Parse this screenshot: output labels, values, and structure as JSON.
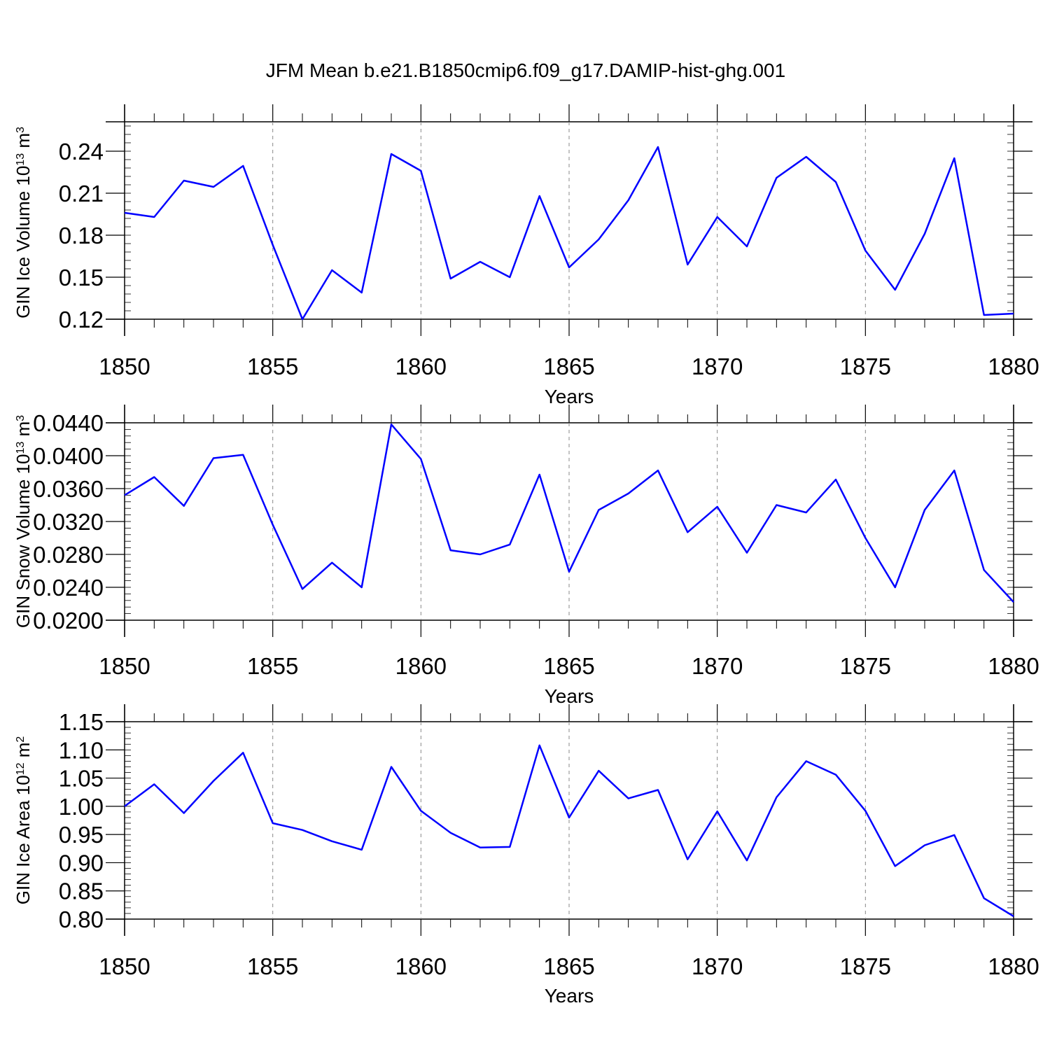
{
  "title": "JFM Mean b.e21.B1850cmip6.f09_g17.DAMIP-hist-ghg.001",
  "line_color": "#0000ff",
  "chart_data": [
    {
      "type": "line",
      "ylabel": "GIN Ice Volume 10",
      "ylabel_exp": "13",
      "ylabel_unit": "m",
      "ylabel_unit_exp": "3",
      "xlabel": "Years",
      "xlim": [
        1850,
        1880
      ],
      "ylim": [
        0.12,
        0.261
      ],
      "yticks": [
        0.12,
        0.15,
        0.18,
        0.21,
        0.24
      ],
      "ytick_labels": [
        "0.12",
        "0.15",
        "0.18",
        "0.21",
        "0.24"
      ],
      "xticks": [
        1850,
        1855,
        1860,
        1865,
        1870,
        1875,
        1880
      ],
      "xtick_labels": [
        "1850",
        "1855",
        "1860",
        "1865",
        "1870",
        "1875",
        "1880"
      ],
      "x": [
        1850,
        1851,
        1852,
        1853,
        1854,
        1855,
        1856,
        1857,
        1858,
        1859,
        1860,
        1861,
        1862,
        1863,
        1864,
        1865,
        1866,
        1867,
        1868,
        1869,
        1870,
        1871,
        1872,
        1873,
        1874,
        1875,
        1876,
        1877,
        1878,
        1879,
        1880
      ],
      "values": [
        0.196,
        0.193,
        0.219,
        0.2145,
        0.2295,
        0.173,
        0.12,
        0.155,
        0.139,
        0.238,
        0.226,
        0.149,
        0.161,
        0.15,
        0.208,
        0.157,
        0.177,
        0.205,
        0.243,
        0.159,
        0.193,
        0.172,
        0.221,
        0.236,
        0.218,
        0.169,
        0.141,
        0.181,
        0.235,
        0.123,
        0.124
      ]
    },
    {
      "type": "line",
      "ylabel": "GIN Snow Volume 10",
      "ylabel_exp": "13",
      "ylabel_unit": "m",
      "ylabel_unit_exp": "3",
      "xlabel": "Years",
      "xlim": [
        1850,
        1880
      ],
      "ylim": [
        0.02,
        0.044
      ],
      "yticks": [
        0.02,
        0.024,
        0.028,
        0.032,
        0.036,
        0.04,
        0.044
      ],
      "ytick_labels": [
        "0.0200",
        "0.0240",
        "0.0280",
        "0.0320",
        "0.0360",
        "0.0400",
        "0.0440"
      ],
      "xticks": [
        1850,
        1855,
        1860,
        1865,
        1870,
        1875,
        1880
      ],
      "xtick_labels": [
        "1850",
        "1855",
        "1860",
        "1865",
        "1870",
        "1875",
        "1880"
      ],
      "x": [
        1850,
        1851,
        1852,
        1853,
        1854,
        1855,
        1856,
        1857,
        1858,
        1859,
        1860,
        1861,
        1862,
        1863,
        1864,
        1865,
        1866,
        1867,
        1868,
        1869,
        1870,
        1871,
        1872,
        1873,
        1874,
        1875,
        1876,
        1877,
        1878,
        1879,
        1880
      ],
      "values": [
        0.0352,
        0.0374,
        0.0339,
        0.0397,
        0.0401,
        0.0316,
        0.0238,
        0.027,
        0.024,
        0.0438,
        0.0396,
        0.0285,
        0.028,
        0.0292,
        0.0377,
        0.0259,
        0.0334,
        0.0354,
        0.0382,
        0.0307,
        0.0338,
        0.0282,
        0.034,
        0.0331,
        0.0371,
        0.03,
        0.024,
        0.0334,
        0.0382,
        0.0261,
        0.0222
      ]
    },
    {
      "type": "line",
      "ylabel": "GIN Ice Area 10",
      "ylabel_exp": "12",
      "ylabel_unit": "m",
      "ylabel_unit_exp": "2",
      "xlabel": "Years",
      "xlim": [
        1850,
        1880
      ],
      "ylim": [
        0.8,
        1.15
      ],
      "yticks": [
        0.8,
        0.85,
        0.9,
        0.95,
        1.0,
        1.05,
        1.1,
        1.15
      ],
      "ytick_labels": [
        "0.80",
        "0.85",
        "0.90",
        "0.95",
        "1.00",
        "1.05",
        "1.10",
        "1.15"
      ],
      "xticks": [
        1850,
        1855,
        1860,
        1865,
        1870,
        1875,
        1880
      ],
      "xtick_labels": [
        "1850",
        "1855",
        "1860",
        "1865",
        "1870",
        "1875",
        "1880"
      ],
      "x": [
        1850,
        1851,
        1852,
        1853,
        1854,
        1855,
        1856,
        1857,
        1858,
        1859,
        1860,
        1861,
        1862,
        1863,
        1864,
        1865,
        1866,
        1867,
        1868,
        1869,
        1870,
        1871,
        1872,
        1873,
        1874,
        1875,
        1876,
        1877,
        1878,
        1879,
        1880
      ],
      "values": [
        1.0,
        1.039,
        0.988,
        1.045,
        1.095,
        0.97,
        0.958,
        0.938,
        0.923,
        1.07,
        0.992,
        0.953,
        0.927,
        0.928,
        1.108,
        0.98,
        1.063,
        1.014,
        1.029,
        0.906,
        0.991,
        0.904,
        1.016,
        1.08,
        1.056,
        0.992,
        0.894,
        0.931,
        0.949,
        0.837,
        0.805
      ]
    }
  ]
}
